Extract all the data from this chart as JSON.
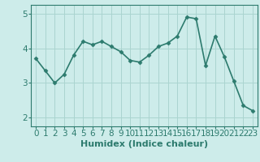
{
  "x": [
    0,
    1,
    2,
    3,
    4,
    5,
    6,
    7,
    8,
    9,
    10,
    11,
    12,
    13,
    14,
    15,
    16,
    17,
    18,
    19,
    20,
    21,
    22,
    23
  ],
  "y": [
    3.7,
    3.35,
    3.0,
    3.25,
    3.8,
    4.2,
    4.1,
    4.2,
    4.05,
    3.9,
    3.65,
    3.6,
    3.8,
    4.05,
    4.15,
    4.35,
    4.9,
    4.85,
    3.5,
    4.35,
    3.75,
    3.05,
    2.35,
    2.2
  ],
  "line_color": "#2d7b6e",
  "marker": "D",
  "marker_size": 2.5,
  "bg_color": "#cdecea",
  "grid_color": "#aad4d0",
  "xlabel": "Humidex (Indice chaleur)",
  "xlabel_fontsize": 8,
  "xtick_labels": [
    "0",
    "1",
    "2",
    "3",
    "4",
    "5",
    "6",
    "7",
    "8",
    "9",
    "10",
    "11",
    "12",
    "13",
    "14",
    "15",
    "16",
    "17",
    "18",
    "19",
    "20",
    "21",
    "22",
    "23"
  ],
  "ylim": [
    1.75,
    5.25
  ],
  "yticks": [
    2,
    3,
    4,
    5
  ],
  "tick_fontsize": 7.5,
  "line_width": 1.2
}
